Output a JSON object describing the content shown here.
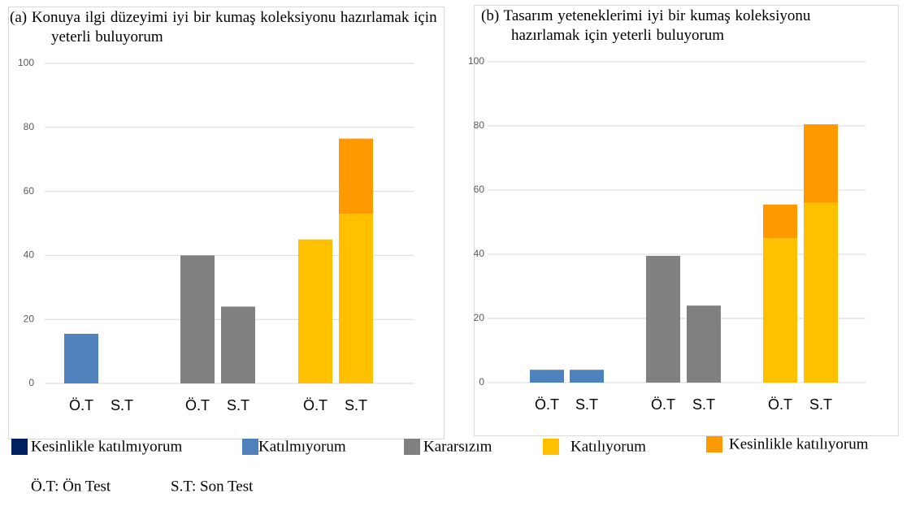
{
  "chart_data": [
    {
      "type": "bar",
      "stacked": true,
      "title": "(a) Konuya ilgi düzeyimi iyi bir kumaş koleksiyonu hazırlamak için yeterli buluyorum",
      "categories": [
        "Ö.T",
        "S.T",
        "Ö.T",
        "S.T",
        "Ö.T",
        "S.T"
      ],
      "series": [
        {
          "name": "Kesinlikle katılmıyorum",
          "color": "#002060",
          "values": [
            null,
            null,
            null,
            null,
            null,
            null
          ]
        },
        {
          "name": "Katılmıyorum",
          "color": "#4f81bd",
          "values": [
            15.5,
            null,
            null,
            null,
            null,
            null
          ]
        },
        {
          "name": "Kararsızım",
          "color": "#808080",
          "values": [
            null,
            null,
            40,
            24,
            null,
            null
          ]
        },
        {
          "name": "Katılıyorum",
          "color": "#ffc000",
          "values": [
            null,
            null,
            null,
            null,
            45,
            53
          ]
        },
        {
          "name": "Kesinlikle katılıyorum",
          "color": "#ff9900",
          "values": [
            null,
            null,
            null,
            null,
            null,
            23.5
          ]
        }
      ],
      "ylim": [
        0,
        100
      ],
      "yticks": [
        0,
        20,
        40,
        60,
        80,
        100
      ],
      "grid": true
    },
    {
      "type": "bar",
      "stacked": true,
      "title": "(b) Tasarım yeteneklerimi iyi bir kumaş koleksiyonu hazırlamak için yeterli buluyorum",
      "categories": [
        "Ö.T",
        "S.T",
        "Ö.T",
        "S.T",
        "Ö.T",
        "S.T"
      ],
      "series": [
        {
          "name": "Kesinlikle katılmıyorum",
          "color": "#002060",
          "values": [
            null,
            null,
            null,
            null,
            null,
            null
          ]
        },
        {
          "name": "Katılmıyorum",
          "color": "#4f81bd",
          "values": [
            4,
            4,
            null,
            null,
            null,
            null
          ]
        },
        {
          "name": "Kararsızım",
          "color": "#808080",
          "values": [
            null,
            null,
            39.5,
            24,
            null,
            null
          ]
        },
        {
          "name": "Katılıyorum",
          "color": "#ffc000",
          "values": [
            null,
            null,
            null,
            null,
            45,
            56
          ]
        },
        {
          "name": "Kesinlikle katılıyorum",
          "color": "#ff9900",
          "values": [
            null,
            null,
            null,
            null,
            10.5,
            24.5
          ]
        }
      ],
      "ylim": [
        0,
        100
      ],
      "yticks": [
        0,
        20,
        40,
        60,
        80,
        100
      ],
      "grid": true
    }
  ],
  "notes": [
    "Ö.T: Ön Test",
    "S.T: Son Test"
  ]
}
